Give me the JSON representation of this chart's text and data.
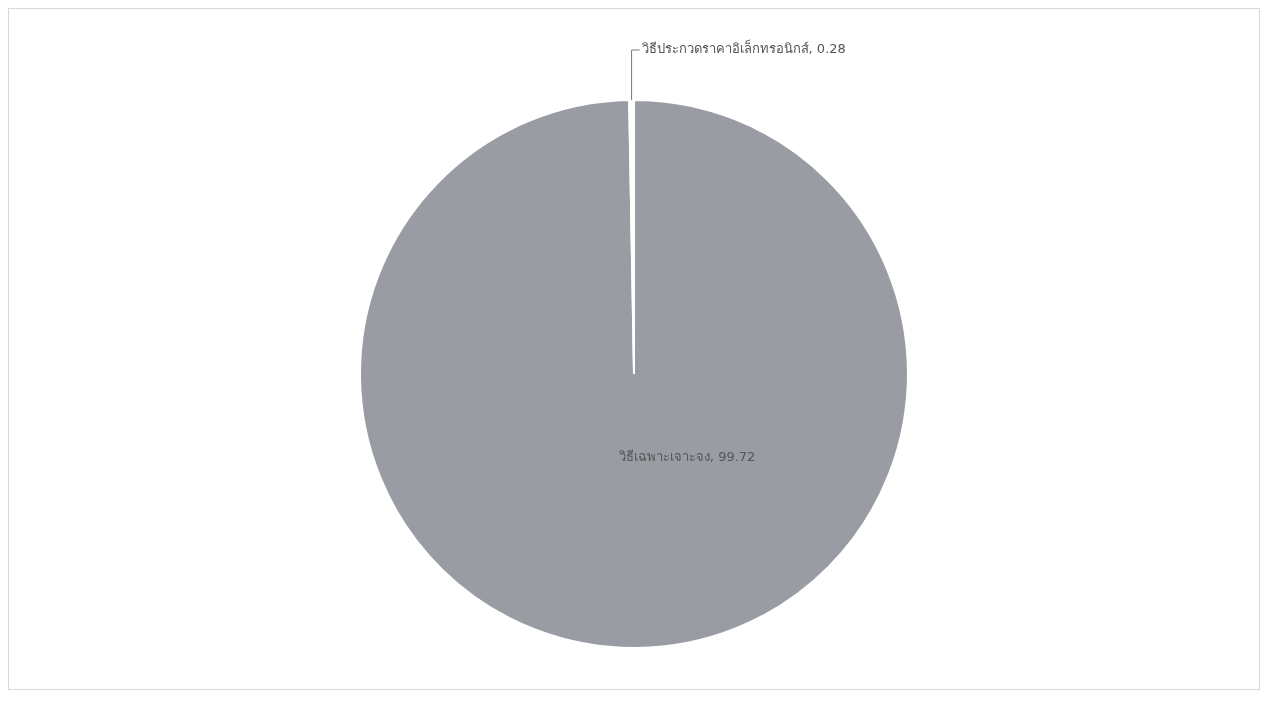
{
  "chart_data": {
    "type": "pie",
    "categories": [
      "วิธีเฉพาะเจาะจง",
      "วิธีประกวดราคาอิเล็กทรอนิกส์"
    ],
    "values": [
      99.72,
      0.28
    ],
    "value_labels": [
      ", 99.72",
      ", 0.28"
    ],
    "colors": [
      "#9a9ca3",
      "#ffffff"
    ],
    "legend": false
  }
}
